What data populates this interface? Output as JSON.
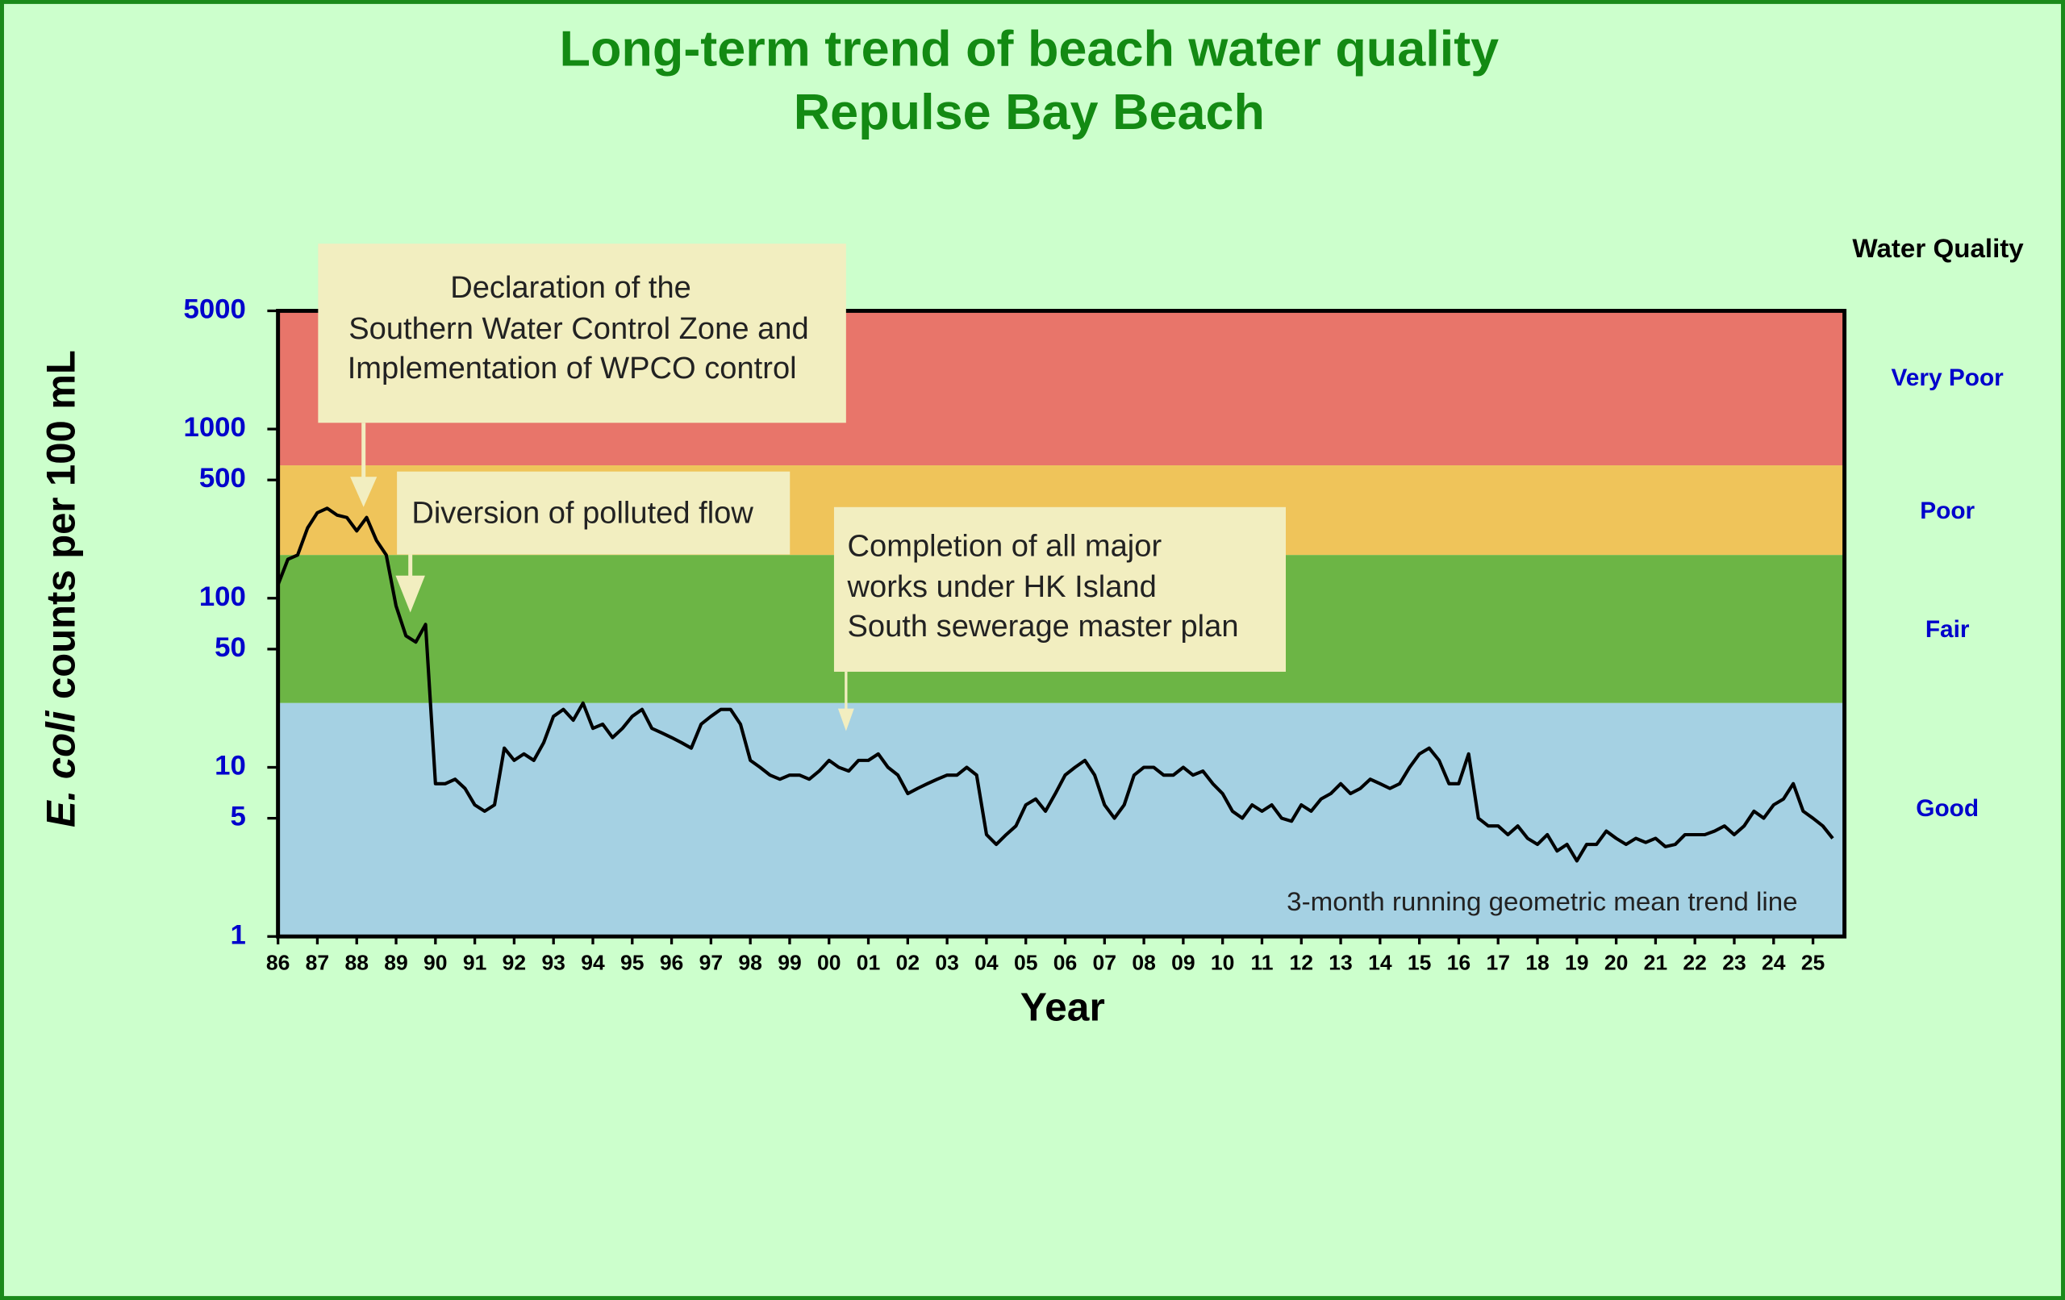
{
  "chart_data": {
    "type": "line",
    "title": [
      "Long-term trend of beach water quality",
      "Repulse Bay Beach"
    ],
    "xlabel": "Year",
    "ylabel": {
      "italic": "E. coli",
      "rest": "counts per 100 mL"
    },
    "legend_title": "Water Quality",
    "note": "3-month running geometric mean trend line",
    "log_y": true,
    "line_color": "#000000",
    "ylim": [
      1,
      5000
    ],
    "yticks": [
      1,
      5,
      10,
      50,
      100,
      500,
      1000,
      5000
    ],
    "xlim": [
      1986,
      2025.8
    ],
    "xticks": [
      {
        "value": 1986,
        "label": "86"
      },
      {
        "value": 1987,
        "label": "87"
      },
      {
        "value": 1988,
        "label": "88"
      },
      {
        "value": 1989,
        "label": "89"
      },
      {
        "value": 1990,
        "label": "90"
      },
      {
        "value": 1991,
        "label": "91"
      },
      {
        "value": 1992,
        "label": "92"
      },
      {
        "value": 1993,
        "label": "93"
      },
      {
        "value": 1994,
        "label": "94"
      },
      {
        "value": 1995,
        "label": "95"
      },
      {
        "value": 1996,
        "label": "96"
      },
      {
        "value": 1997,
        "label": "97"
      },
      {
        "value": 1998,
        "label": "98"
      },
      {
        "value": 1999,
        "label": "99"
      },
      {
        "value": 2000,
        "label": "00"
      },
      {
        "value": 2001,
        "label": "01"
      },
      {
        "value": 2002,
        "label": "02"
      },
      {
        "value": 2003,
        "label": "03"
      },
      {
        "value": 2004,
        "label": "04"
      },
      {
        "value": 2005,
        "label": "05"
      },
      {
        "value": 2006,
        "label": "06"
      },
      {
        "value": 2007,
        "label": "07"
      },
      {
        "value": 2008,
        "label": "08"
      },
      {
        "value": 2009,
        "label": "09"
      },
      {
        "value": 2010,
        "label": "10"
      },
      {
        "value": 2011,
        "label": "11"
      },
      {
        "value": 2012,
        "label": "12"
      },
      {
        "value": 2013,
        "label": "13"
      },
      {
        "value": 2014,
        "label": "14"
      },
      {
        "value": 2015,
        "label": "15"
      },
      {
        "value": 2016,
        "label": "16"
      },
      {
        "value": 2017,
        "label": "17"
      },
      {
        "value": 2018,
        "label": "18"
      },
      {
        "value": 2019,
        "label": "19"
      },
      {
        "value": 2020,
        "label": "20"
      },
      {
        "value": 2021,
        "label": "21"
      },
      {
        "value": 2022,
        "label": "22"
      },
      {
        "value": 2023,
        "label": "23"
      },
      {
        "value": 2024,
        "label": "24"
      },
      {
        "value": 2025,
        "label": "25"
      }
    ],
    "bands": [
      {
        "name": "Very Poor",
        "from": 610,
        "to": 5000,
        "color": "#e8756a"
      },
      {
        "name": "Poor",
        "from": 180,
        "to": 610,
        "color": "#efc45a"
      },
      {
        "name": "Fair",
        "from": 24,
        "to": 180,
        "color": "#6cb545"
      },
      {
        "name": "Good",
        "from": 1,
        "to": 24,
        "color": "#a5d1e3"
      }
    ],
    "annotations": [
      {
        "lines": [
          "Declaration of the",
          "Southern Water Control Zone and",
          "Implementation of WPCO control"
        ]
      },
      {
        "lines": [
          "Diversion of polluted flow"
        ]
      },
      {
        "lines": [
          "Completion of all major",
          "works under HK Island",
          "South sewerage master plan"
        ]
      }
    ],
    "x": [
      1986,
      1986.25,
      1986.5,
      1986.75,
      1987,
      1987.25,
      1987.5,
      1987.75,
      1988,
      1988.25,
      1988.5,
      1988.75,
      1989,
      1989.25,
      1989.5,
      1989.75,
      1990,
      1990.25,
      1990.5,
      1990.75,
      1991,
      1991.25,
      1991.5,
      1991.75,
      1992,
      1992.25,
      1992.5,
      1992.75,
      1993,
      1993.25,
      1993.5,
      1993.75,
      1994,
      1994.25,
      1994.5,
      1994.75,
      1995,
      1995.25,
      1995.5,
      1995.75,
      1996,
      1996.25,
      1996.5,
      1996.75,
      1997,
      1997.25,
      1997.5,
      1997.75,
      1998,
      1998.25,
      1998.5,
      1998.75,
      1999,
      1999.25,
      1999.5,
      1999.75,
      2000,
      2000.25,
      2000.5,
      2000.75,
      2001,
      2001.25,
      2001.5,
      2001.75,
      2002,
      2002.25,
      2002.5,
      2002.75,
      2003,
      2003.25,
      2003.5,
      2003.75,
      2004,
      2004.25,
      2004.5,
      2004.75,
      2005,
      2005.25,
      2005.5,
      2005.75,
      2006,
      2006.25,
      2006.5,
      2006.75,
      2007,
      2007.25,
      2007.5,
      2007.75,
      2008,
      2008.25,
      2008.5,
      2008.75,
      2009,
      2009.25,
      2009.5,
      2009.75,
      2010,
      2010.25,
      2010.5,
      2010.75,
      2011,
      2011.25,
      2011.5,
      2011.75,
      2012,
      2012.25,
      2012.5,
      2012.75,
      2013,
      2013.25,
      2013.5,
      2013.75,
      2014,
      2014.25,
      2014.5,
      2014.75,
      2015,
      2015.25,
      2015.5,
      2015.75,
      2016,
      2016.25,
      2016.5,
      2016.75,
      2017,
      2017.25,
      2017.5,
      2017.75,
      2018,
      2018.25,
      2018.5,
      2018.75,
      2019,
      2019.25,
      2019.5,
      2019.75,
      2020,
      2020.25,
      2020.5,
      2020.75,
      2021,
      2021.25,
      2021.5,
      2021.75,
      2022,
      2022.25,
      2022.5,
      2022.75,
      2023,
      2023.25,
      2023.5,
      2023.75,
      2024,
      2024.25,
      2024.5,
      2024.75,
      2025,
      2025.25,
      2025.5
    ],
    "values": [
      120,
      170,
      180,
      260,
      320,
      340,
      310,
      300,
      250,
      300,
      220,
      180,
      90,
      60,
      55,
      70,
      8,
      8,
      8.5,
      7.5,
      6,
      5.5,
      6,
      13,
      11,
      12,
      11,
      14,
      20,
      22,
      19,
      24,
      17,
      18,
      15,
      17,
      20,
      22,
      17,
      16,
      15,
      14,
      13,
      18,
      20,
      22,
      22,
      18,
      11,
      10,
      9,
      8.5,
      9,
      9,
      8.5,
      9.5,
      11,
      10,
      9.5,
      11,
      11,
      12,
      10,
      9,
      7,
      7.5,
      8,
      8.5,
      9,
      9,
      10,
      9,
      4,
      3.5,
      4,
      4.5,
      6,
      6.5,
      5.5,
      7,
      9,
      10,
      11,
      9,
      6,
      5,
      6,
      9,
      10,
      10,
      9,
      9,
      10,
      9,
      9.5,
      8,
      7,
      5.5,
      5,
      6,
      5.5,
      6,
      5,
      4.8,
      6,
      5.5,
      6.5,
      7,
      8,
      7,
      7.5,
      8.5,
      8,
      7.5,
      8,
      10,
      12,
      13,
      11,
      8,
      8,
      12,
      5,
      4.5,
      4.5,
      4,
      4.5,
      3.8,
      3.5,
      4,
      3.2,
      3.5,
      2.8,
      3.5,
      3.5,
      4.2,
      3.8,
      3.5,
      3.8,
      3.6,
      3.8,
      3.4,
      3.5,
      4,
      4,
      4,
      4.2,
      4.5,
      4,
      4.5,
      5.5,
      5,
      6,
      6.5,
      8,
      5.5,
      5,
      4.5,
      3.8
    ]
  }
}
